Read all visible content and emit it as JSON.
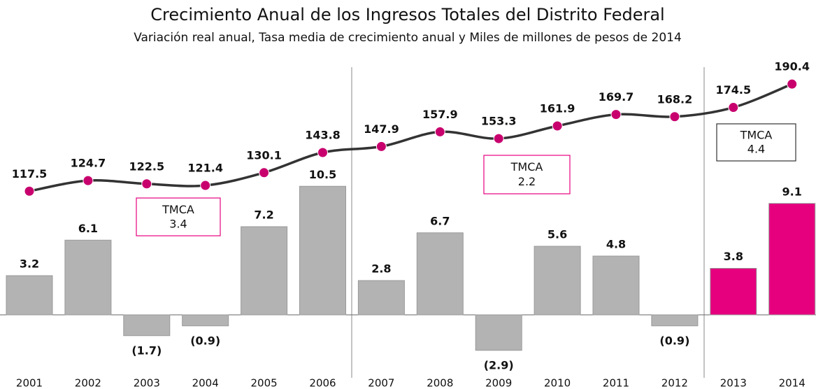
{
  "chart_data": {
    "type": "bar-line",
    "title": "Crecimiento Anual de los Ingresos Totales del Distrito Federal",
    "subtitle": "Variación real anual, Tasa media de crecimiento anual y Miles de millones de pesos de 2014",
    "categories": [
      "2001",
      "2002",
      "2003",
      "2004",
      "2005",
      "2006",
      "2007",
      "2008",
      "2009",
      "2010",
      "2011",
      "2012",
      "2013",
      "2014"
    ],
    "ylim": [
      -4,
      20
    ],
    "y2lim": [
      0,
      200
    ],
    "series": [
      {
        "type": "bar",
        "colors": [
          "#b3b3b3",
          "#b3b3b3",
          "#b3b3b3",
          "#b3b3b3",
          "#b3b3b3",
          "#b3b3b3",
          "#b3b3b3",
          "#b3b3b3",
          "#b3b3b3",
          "#b3b3b3",
          "#b3b3b3",
          "#b3b3b3",
          "#e6007e",
          "#e6007e"
        ],
        "values": [
          3.2,
          6.1,
          -1.7,
          -0.9,
          7.2,
          10.5,
          2.8,
          6.7,
          -2.9,
          5.6,
          4.8,
          -0.9,
          3.8,
          9.1
        ],
        "value_labels": [
          "3.2",
          "6.1",
          "(1.7)",
          "(0.9)",
          "7.2",
          "10.5",
          "2.8",
          "6.7",
          "(2.9)",
          "5.6",
          "4.8",
          "(0.9)",
          "3.8",
          "9.1"
        ]
      },
      {
        "type": "line",
        "axis": "y2",
        "color": "#333333",
        "marker_color": "#c8006e",
        "values": [
          117.5,
          124.7,
          122.5,
          121.4,
          130.1,
          143.8,
          147.9,
          157.9,
          153.3,
          161.9,
          169.7,
          168.2,
          174.5,
          190.4
        ]
      }
    ],
    "annotations": [
      {
        "text": "TMCA",
        "value": 3.4,
        "color": "#e6007e"
      },
      {
        "text": "TMCA",
        "value": 2.2,
        "color": "#e6007e"
      },
      {
        "text": "TMCA",
        "value": 4.4,
        "color": "#333333"
      }
    ]
  }
}
